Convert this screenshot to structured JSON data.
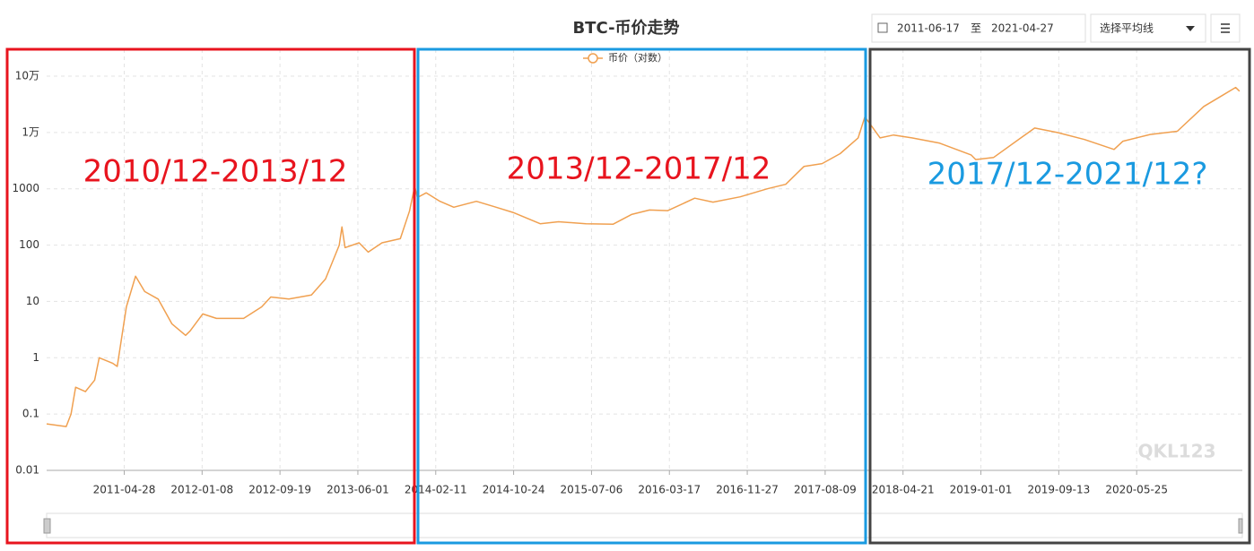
{
  "controls": {
    "start_date": "2011-06-17",
    "separator": "至",
    "end_date": "2021-04-27",
    "average_select": "选择平均线"
  },
  "chart_data": {
    "type": "line",
    "title": "BTC-币价走势",
    "log_scale": true,
    "grid": true,
    "legend": "top",
    "xlim": [
      "2010-08-17",
      "2021-05-06"
    ],
    "xticks": [
      "2011-04-28",
      "2012-01-08",
      "2012-09-19",
      "2013-06-01",
      "2014-02-11",
      "2014-10-24",
      "2015-07-06",
      "2016-03-17",
      "2016-11-27",
      "2017-08-09",
      "2018-04-21",
      "2019-01-01",
      "2019-09-13",
      "2020-05-25"
    ],
    "ylim": [
      0.01,
      100000
    ],
    "yticks": [
      0.01,
      0.1,
      1,
      10,
      100,
      1000,
      {
        "value": 10000,
        "label": "1万"
      },
      {
        "value": 100000,
        "label": "10万"
      }
    ],
    "x": [
      "2010-08-17",
      "2010-10-20",
      "2010-11-05",
      "2010-11-20",
      "2010-12-22",
      "2011-01-21",
      "2011-02-05",
      "2011-03-21",
      "2011-04-05",
      "2011-05-05",
      "2011-06-04",
      "2011-07-04",
      "2011-08-17",
      "2011-10-01",
      "2011-11-15",
      "2011-11-30",
      "2012-01-10",
      "2012-02-24",
      "2012-05-23",
      "2012-07-21",
      "2012-08-20",
      "2012-10-18",
      "2012-12-31",
      "2013-02-15",
      "2013-04-01",
      "2013-04-10",
      "2013-04-20",
      "2013-06-05",
      "2013-07-05",
      "2013-08-19",
      "2013-10-18",
      "2013-11-17",
      "2013-12-04",
      "2013-12-13",
      "2014-01-11",
      "2014-02-25",
      "2014-04-11",
      "2014-06-24",
      "2014-08-23",
      "2014-10-22",
      "2015-01-19",
      "2015-03-20",
      "2015-06-18",
      "2015-09-15",
      "2015-11-14",
      "2016-01-12",
      "2016-03-12",
      "2016-06-08",
      "2016-08-07",
      "2016-11-04",
      "2017-02-01",
      "2017-04-02",
      "2017-06-01",
      "2017-07-30",
      "2017-09-27",
      "2017-11-25",
      "2017-12-17",
      "2018-02-05",
      "2018-03-21",
      "2018-05-20",
      "2018-08-17",
      "2018-11-30",
      "2018-12-15",
      "2019-02-12",
      "2019-05-12",
      "2019-06-26",
      "2019-09-08",
      "2019-12-06",
      "2020-03-12",
      "2020-04-10",
      "2020-07-08",
      "2020-10-05",
      "2020-12-31",
      "2021-02-28",
      "2021-04-14",
      "2021-04-27"
    ],
    "series": [
      {
        "name": "币价（对数）",
        "color": "#f0a050",
        "values": [
          0.067,
          0.06,
          0.1,
          0.3,
          0.25,
          0.4,
          1.0,
          0.8,
          0.7,
          8,
          28,
          15,
          11,
          4,
          2.5,
          3,
          6,
          5,
          5,
          8,
          12,
          11,
          13,
          25,
          100,
          210,
          90,
          110,
          75,
          110,
          130,
          400,
          1100,
          700,
          850,
          600,
          470,
          600,
          480,
          380,
          240,
          260,
          240,
          235,
          350,
          420,
          410,
          680,
          580,
          720,
          1000,
          1200,
          2500,
          2800,
          4200,
          8000,
          19000,
          8000,
          9000,
          8000,
          6500,
          4000,
          3300,
          3600,
          8000,
          12000,
          10000,
          7500,
          5000,
          7000,
          9200,
          10500,
          29000,
          45000,
          63000,
          54000
        ]
      }
    ],
    "annotations": [
      {
        "text": "2010/12-2013/12",
        "color": "#e8141e"
      },
      {
        "text": "2013/12-2017/12",
        "color": "#e8141e"
      },
      {
        "text": "2017/12-2021/12?",
        "color": "#1a9ae0"
      }
    ],
    "watermark": "QKL123"
  }
}
